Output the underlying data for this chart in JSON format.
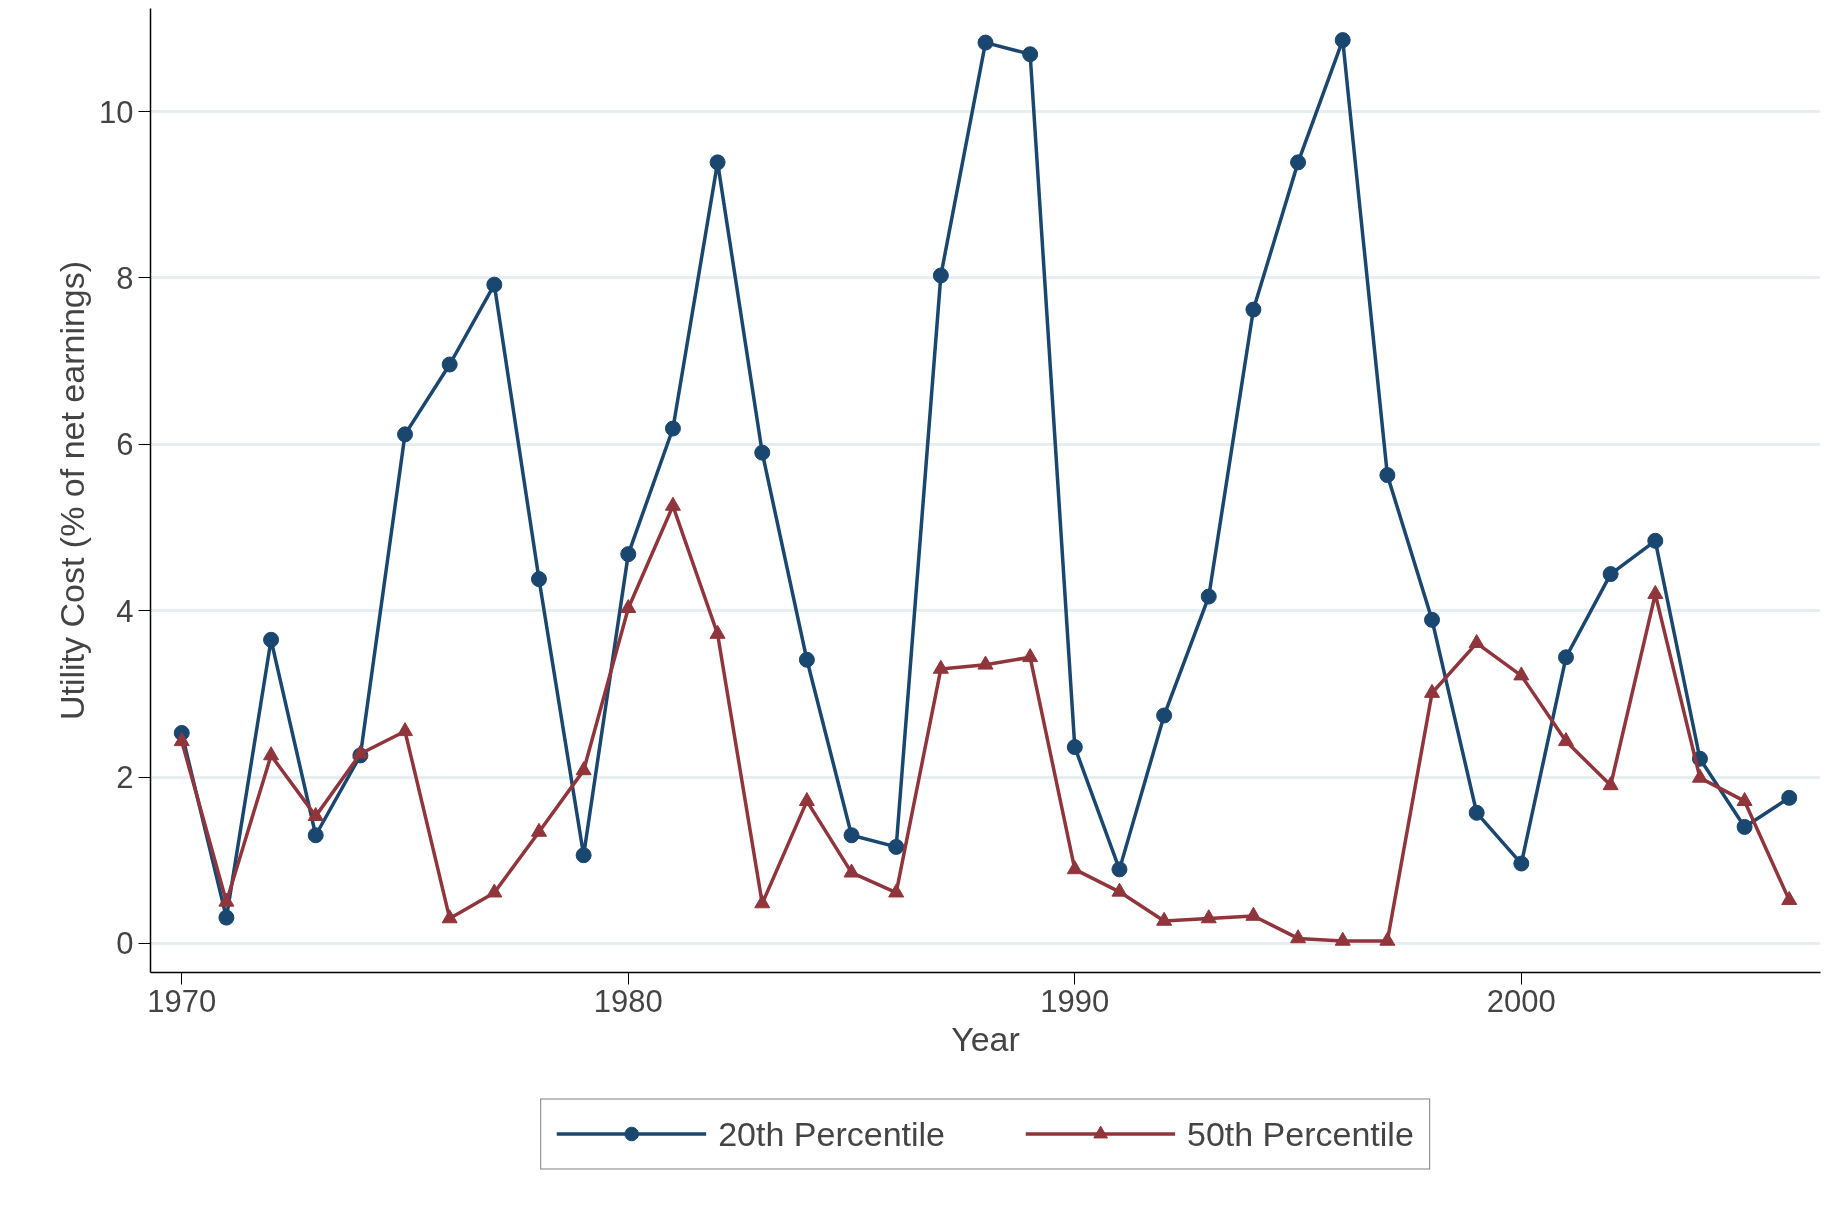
{
  "chart_data": {
    "type": "line",
    "xlabel": "Year",
    "ylabel": "Utility Cost (% of net earnings)",
    "x": [
      1970,
      1971,
      1972,
      1973,
      1974,
      1975,
      1976,
      1977,
      1978,
      1979,
      1980,
      1981,
      1982,
      1983,
      1984,
      1985,
      1986,
      1987,
      1988,
      1989,
      1990,
      1991,
      1992,
      1993,
      1994,
      1995,
      1996,
      1997,
      1998,
      1999,
      2000,
      2001,
      2002,
      2003,
      2004,
      2005,
      2006
    ],
    "series": [
      {
        "name": "20th Percentile",
        "color": "#1a476f",
        "marker": "circle",
        "values": [
          2.53,
          0.31,
          3.65,
          1.3,
          2.26,
          6.12,
          6.96,
          7.92,
          4.38,
          1.06,
          4.68,
          6.19,
          9.39,
          5.9,
          3.41,
          1.3,
          1.16,
          8.03,
          10.83,
          10.69,
          2.36,
          0.89,
          2.74,
          4.17,
          7.62,
          9.39,
          10.86,
          5.63,
          3.89,
          1.57,
          0.96,
          3.44,
          4.44,
          4.84,
          2.22,
          1.4,
          1.75
        ]
      },
      {
        "name": "50th Percentile",
        "color": "#90353b",
        "marker": "triangle",
        "values": [
          2.43,
          0.5,
          2.26,
          1.53,
          2.28,
          2.55,
          0.3,
          0.61,
          1.34,
          2.08,
          4.03,
          5.26,
          3.72,
          0.48,
          1.71,
          0.85,
          0.61,
          3.3,
          3.35,
          3.44,
          0.89,
          0.62,
          0.27,
          0.3,
          0.33,
          0.06,
          0.03,
          0.03,
          3.01,
          3.61,
          3.22,
          2.43,
          1.9,
          4.2,
          1.99,
          1.71,
          0.52
        ]
      }
    ],
    "xlim": [
      1969.3,
      2006.7
    ],
    "ylim": [
      -0.35,
      11.24
    ],
    "xticks": [
      1970,
      1980,
      1990,
      2000
    ],
    "yticks": [
      0,
      2,
      4,
      6,
      8,
      10
    ],
    "grid": "y",
    "legend": "bottom",
    "line_style": "solid"
  }
}
